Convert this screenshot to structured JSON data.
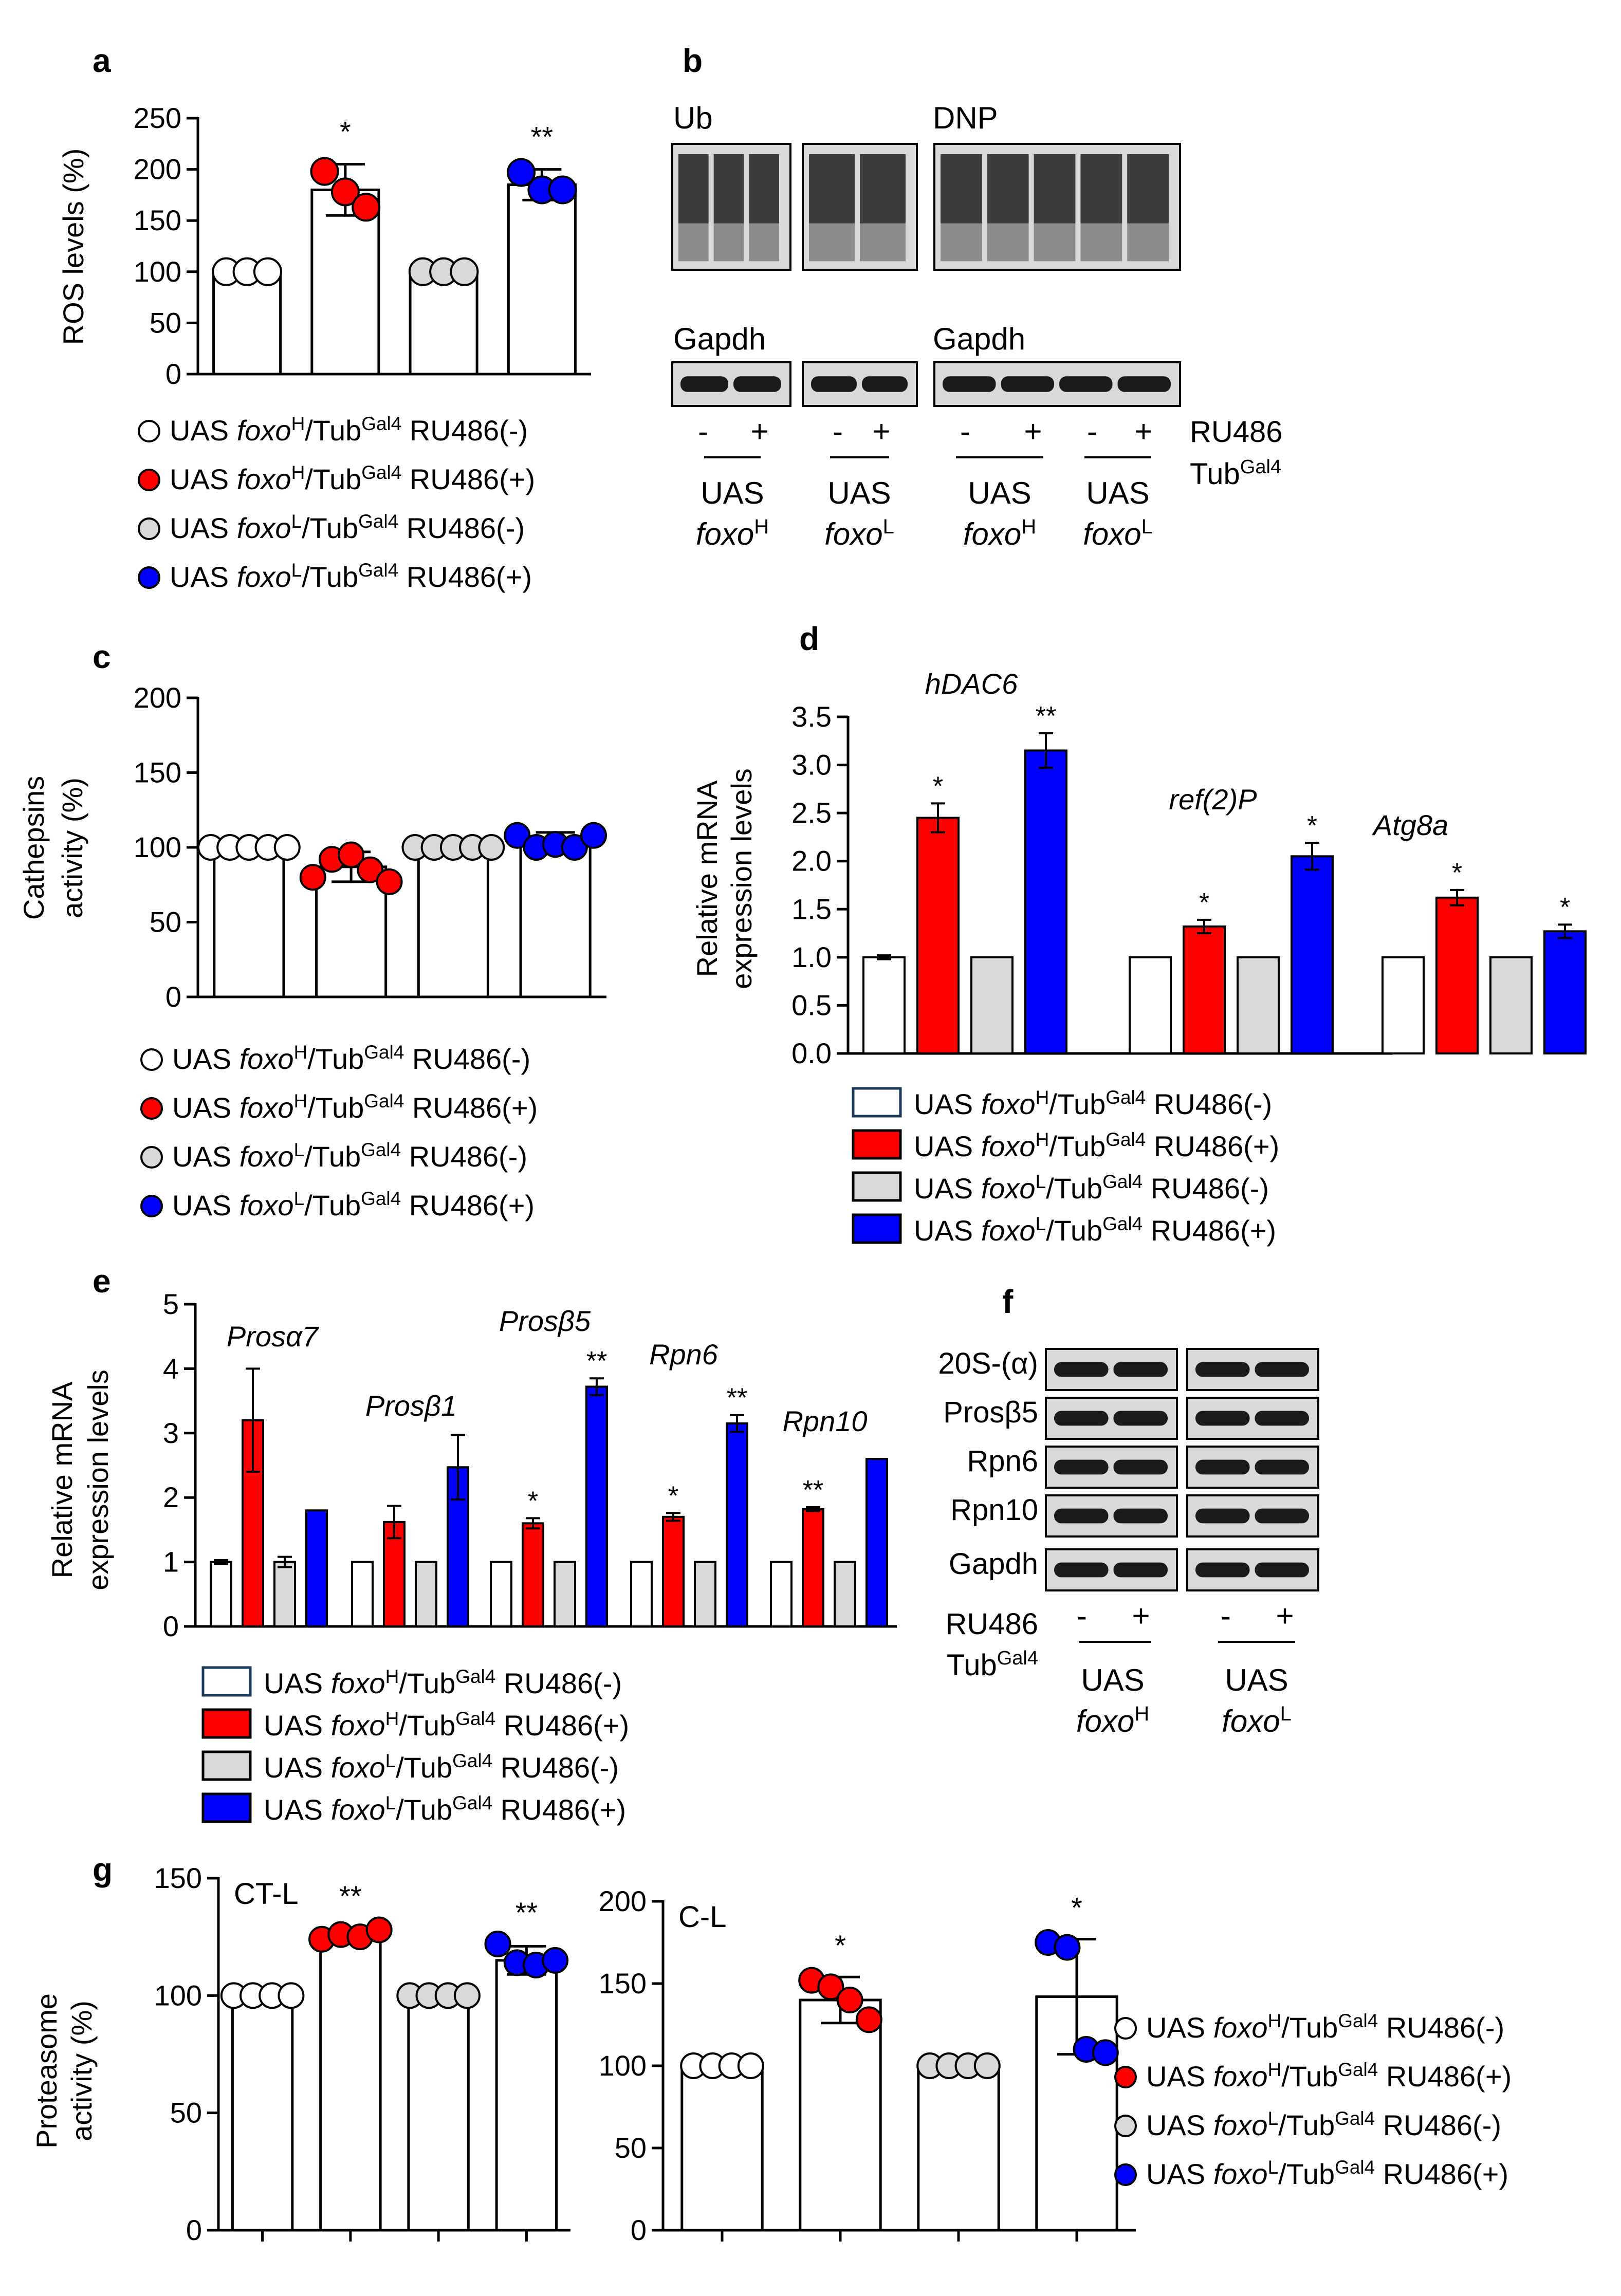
{
  "colors": {
    "ctrl_h": "#ffffff",
    "ru_h": "#ff0000",
    "ctrl_l": "#d9d9d9",
    "ru_l": "#0000ff"
  },
  "legend": [
    {
      "prefix": "UAS ",
      "gene": "foxo",
      "allele": "H",
      "mid": "/Tub",
      "sup": "Gal4",
      "suffix": " RU486(-)",
      "color": "#ffffff"
    },
    {
      "prefix": "UAS ",
      "gene": "foxo",
      "allele": "H",
      "mid": "/Tub",
      "sup": "Gal4",
      "suffix": " RU486(+)",
      "color": "#ff0000"
    },
    {
      "prefix": "UAS ",
      "gene": "foxo",
      "allele": "L",
      "mid": "/Tub",
      "sup": "Gal4",
      "suffix": " RU486(-)",
      "color": "#d9d9d9"
    },
    {
      "prefix": "UAS ",
      "gene": "foxo",
      "allele": "L",
      "mid": "/Tub",
      "sup": "Gal4",
      "suffix": " RU486(+)",
      "color": "#0000ff"
    }
  ],
  "panels": {
    "a": {
      "letter": "a",
      "ylabel": "ROS levels (%)"
    },
    "b": {
      "letter": "b",
      "blot_labels": [
        "Ub",
        "DNP",
        "Gapdh",
        "Gapdh"
      ],
      "lane_signs": [
        "-",
        "+",
        "-",
        "+",
        "-",
        "+",
        "-",
        "+"
      ],
      "treatment": [
        "RU486",
        "Tub",
        "Gal4"
      ],
      "groups": [
        {
          "uas": "UAS",
          "gene": "foxo",
          "allele": "H"
        },
        {
          "uas": "UAS",
          "gene": "foxo",
          "allele": "L"
        },
        {
          "uas": "UAS",
          "gene": "foxo",
          "allele": "H"
        },
        {
          "uas": "UAS",
          "gene": "foxo",
          "allele": "L"
        }
      ]
    },
    "c": {
      "letter": "c",
      "ylabel": [
        "Cathepsins",
        "activity (%)"
      ]
    },
    "d": {
      "letter": "d",
      "ylabel": [
        "Relative mRNA",
        "expression levels"
      ]
    },
    "e": {
      "letter": "e",
      "ylabel": [
        "Relative mRNA",
        "expression levels"
      ]
    },
    "f": {
      "letter": "f",
      "rows": [
        "20S-(α)",
        "Prosβ5",
        "Rpn6",
        "Rpn10",
        "Gapdh"
      ],
      "lane_signs": [
        "-",
        "+",
        "-",
        "+"
      ],
      "treatment": [
        "RU486",
        "Tub",
        "Gal4"
      ],
      "groups": [
        {
          "uas": "UAS",
          "gene": "foxo",
          "allele": "H"
        },
        {
          "uas": "UAS",
          "gene": "foxo",
          "allele": "L"
        }
      ]
    },
    "g": {
      "letter": "g",
      "ylabel": [
        "Proteasome",
        "activity (%)"
      ]
    }
  },
  "chart_data": [
    {
      "id": "a",
      "type": "bar",
      "title": "",
      "xlabel": "",
      "ylabel": "ROS levels (%)",
      "ylim": [
        0,
        250
      ],
      "yticks": [
        0,
        50,
        100,
        150,
        200,
        250
      ],
      "categories": [
        "UAS foxoH/TubGal4 RU486(-)",
        "UAS foxoH/TubGal4 RU486(+)",
        "UAS foxoL/TubGal4 RU486(-)",
        "UAS foxoL/TubGal4 RU486(+)"
      ],
      "values": [
        100,
        180,
        100,
        185
      ],
      "errors": [
        0,
        25,
        0,
        15
      ],
      "points": [
        [
          100,
          100,
          100
        ],
        [
          198,
          178,
          163
        ],
        [
          100,
          100,
          100
        ],
        [
          197,
          180,
          180
        ]
      ],
      "significance": [
        "",
        "*",
        "",
        "**"
      ]
    },
    {
      "id": "c",
      "type": "bar",
      "title": "",
      "xlabel": "",
      "ylabel": "Cathepsins activity (%)",
      "ylim": [
        0,
        200
      ],
      "yticks": [
        0,
        50,
        100,
        150,
        200
      ],
      "categories": [
        "UAS foxoH/TubGal4 RU486(-)",
        "UAS foxoH/TubGal4 RU486(+)",
        "UAS foxoL/TubGal4 RU486(-)",
        "UAS foxoL/TubGal4 RU486(+)"
      ],
      "values": [
        100,
        87,
        100,
        105
      ],
      "errors": [
        0,
        10,
        0,
        5
      ],
      "points": [
        [
          100,
          100,
          100,
          100,
          100
        ],
        [
          80,
          92,
          95,
          85,
          77
        ],
        [
          100,
          100,
          100,
          100,
          100
        ],
        [
          108,
          100,
          102,
          100,
          108
        ]
      ],
      "significance": [
        "",
        "",
        "",
        ""
      ]
    },
    {
      "id": "d",
      "type": "bar",
      "title": "",
      "xlabel": "",
      "ylabel": "Relative mRNA expression levels",
      "ylim": [
        0,
        3.5
      ],
      "yticks": [
        "0.0",
        "0.5",
        "1.0",
        "1.5",
        "2.0",
        "2.5",
        "3.0",
        "3.5"
      ],
      "categories": [
        "hDAC6",
        "ref(2)P",
        "Atg8a"
      ],
      "series": [
        {
          "name": "UAS foxoH/TubGal4 RU486(-)",
          "values": [
            1.0,
            1.0,
            1.0
          ],
          "errors": [
            0.02,
            0,
            0
          ],
          "significance": [
            "",
            "",
            ""
          ]
        },
        {
          "name": "UAS foxoH/TubGal4 RU486(+)",
          "values": [
            2.45,
            1.32,
            1.62
          ],
          "errors": [
            0.15,
            0.07,
            0.08
          ],
          "significance": [
            "*",
            "*",
            "*"
          ]
        },
        {
          "name": "UAS foxoL/TubGal4 RU486(-)",
          "values": [
            1.0,
            1.0,
            1.0
          ],
          "errors": [
            0,
            0,
            0
          ],
          "significance": [
            "",
            "",
            ""
          ]
        },
        {
          "name": "UAS foxoL/TubGal4 RU486(+)",
          "values": [
            3.15,
            2.05,
            1.27
          ],
          "errors": [
            0.18,
            0.14,
            0.07
          ],
          "significance": [
            "**",
            "*",
            "*"
          ]
        }
      ]
    },
    {
      "id": "e",
      "type": "bar",
      "title": "",
      "xlabel": "",
      "ylabel": "Relative mRNA expression levels",
      "ylim": [
        0,
        5
      ],
      "yticks": [
        0,
        1,
        2,
        3,
        4,
        5
      ],
      "categories": [
        "Prosα7",
        "Prosβ1",
        "Prosβ5",
        "Rpn6",
        "Rpn10"
      ],
      "series": [
        {
          "name": "UAS foxoH/TubGal4 RU486(-)",
          "values": [
            1.0,
            1.0,
            1.0,
            1.0,
            1.0
          ],
          "errors": [
            0.03,
            0,
            0,
            0,
            0
          ],
          "significance": [
            "",
            "",
            "",
            "",
            ""
          ]
        },
        {
          "name": "UAS foxoH/TubGal4 RU486(+)",
          "values": [
            3.2,
            1.62,
            1.6,
            1.7,
            1.82
          ],
          "errors": [
            0.8,
            0.25,
            0.08,
            0.06,
            0.03
          ],
          "significance": [
            "",
            "",
            "*",
            "*",
            "**"
          ]
        },
        {
          "name": "UAS foxoL/TubGal4 RU486(-)",
          "values": [
            1.0,
            1.0,
            1.0,
            1.0,
            1.0
          ],
          "errors": [
            0.08,
            0,
            0,
            0,
            0
          ],
          "significance": [
            "",
            "",
            "",
            "",
            ""
          ]
        },
        {
          "name": "UAS foxoL/TubGal4 RU486(+)",
          "values": [
            1.8,
            2.47,
            3.72,
            3.15,
            2.6
          ],
          "errors": [
            0,
            0.5,
            0.13,
            0.13,
            0
          ],
          "significance": [
            "",
            "",
            "**",
            "**",
            ""
          ]
        }
      ]
    },
    {
      "id": "g1",
      "type": "bar",
      "title": "CT-L",
      "xlabel": "",
      "ylabel": "Proteasome activity (%)",
      "ylim": [
        0,
        150
      ],
      "yticks": [
        0,
        50,
        100,
        150
      ],
      "categories": [
        "UAS foxoH/TubGal4 RU486(-)",
        "UAS foxoH/TubGal4 RU486(+)",
        "UAS foxoL/TubGal4 RU486(-)",
        "UAS foxoL/TubGal4 RU486(+)"
      ],
      "values": [
        100,
        126,
        100,
        115
      ],
      "errors": [
        0,
        3,
        0,
        6
      ],
      "points": [
        [
          100,
          100,
          100,
          100
        ],
        [
          124,
          126,
          125,
          128
        ],
        [
          100,
          100,
          100,
          100
        ],
        [
          122,
          114,
          113,
          115
        ]
      ],
      "significance": [
        "",
        "**",
        "",
        "**"
      ]
    },
    {
      "id": "g2",
      "type": "bar",
      "title": "C-L",
      "xlabel": "",
      "ylabel": "",
      "ylim": [
        0,
        200
      ],
      "yticks": [
        0,
        50,
        100,
        150,
        200
      ],
      "categories": [
        "UAS foxoH/TubGal4 RU486(-)",
        "UAS foxoH/TubGal4 RU486(+)",
        "UAS foxoL/TubGal4 RU486(-)",
        "UAS foxoL/TubGal4 RU486(+)"
      ],
      "values": [
        100,
        140,
        100,
        142
      ],
      "errors": [
        0,
        14,
        0,
        35
      ],
      "points": [
        [
          100,
          100,
          100,
          100
        ],
        [
          152,
          148,
          140,
          128
        ],
        [
          100,
          100,
          100,
          100
        ],
        [
          175,
          172,
          110,
          108
        ]
      ],
      "significance": [
        "",
        "*",
        "",
        "*"
      ]
    }
  ]
}
